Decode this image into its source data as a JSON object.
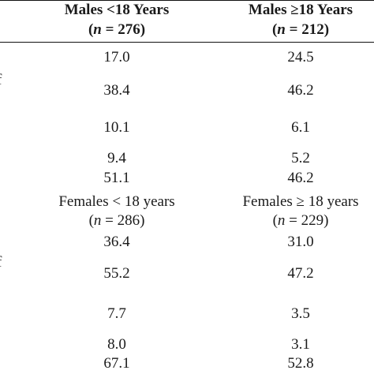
{
  "table": {
    "header": {
      "col1_title": "Males <18 Years",
      "col1_n_prefix": "(",
      "col1_n_var": "n",
      "col1_n_rest": " = 276)",
      "col2_title": "Males ≥18 Years",
      "col2_n_prefix": "(",
      "col2_n_var": "n",
      "col2_n_rest": " = 212)"
    },
    "males_rows": [
      {
        "col1": "17.0",
        "col2": "24.5"
      },
      {
        "col1": "38.4",
        "col2": "46.2"
      },
      {
        "col1": "10.1",
        "col2": "6.1"
      },
      {
        "col1": "9.4",
        "col2": "5.2"
      },
      {
        "col1": "51.1",
        "col2": "46.2"
      }
    ],
    "females_header": {
      "col1_title": "Females < 18 years",
      "col1_n_prefix": "(",
      "col1_n_var": "n",
      "col1_n_rest": " = 286)",
      "col2_title": "Females ≥ 18 years",
      "col2_n_prefix": "(",
      "col2_n_var": "n",
      "col2_n_rest": " = 229)"
    },
    "females_rows": [
      {
        "col1": "36.4",
        "col2": "31.0"
      },
      {
        "col1": "55.2",
        "col2": "47.2"
      },
      {
        "col1": "7.7",
        "col2": "3.5"
      },
      {
        "col1": "8.0",
        "col2": "3.1"
      },
      {
        "col1": "67.1",
        "col2": "52.8"
      }
    ],
    "clipped_left_glyph_1": "f",
    "clipped_left_glyph_2": "f"
  }
}
